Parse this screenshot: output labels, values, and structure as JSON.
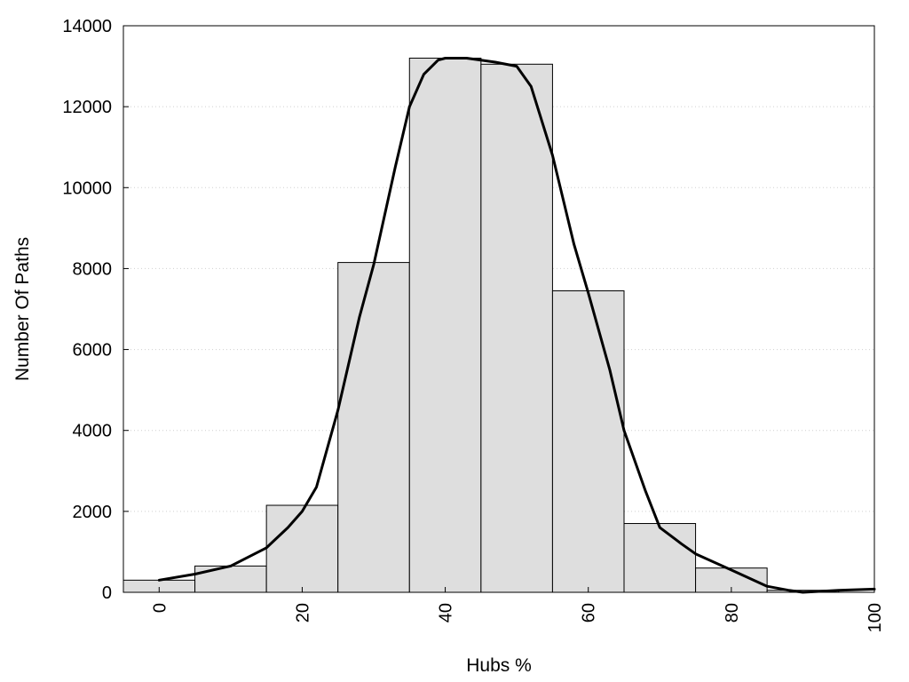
{
  "chart_data": {
    "type": "bar",
    "xlabel": "Hubs %",
    "ylabel": "Number Of Paths",
    "xlim": [
      -5,
      100
    ],
    "ylim": [
      0,
      14000
    ],
    "grid": "horizontal dotted",
    "x_ticks": [
      0,
      20,
      40,
      60,
      80,
      100
    ],
    "y_ticks": [
      0,
      2000,
      4000,
      6000,
      8000,
      10000,
      12000,
      14000
    ],
    "bin_width": 10,
    "bins": [
      {
        "center": 0,
        "value": 300
      },
      {
        "center": 10,
        "value": 650
      },
      {
        "center": 20,
        "value": 2150
      },
      {
        "center": 30,
        "value": 8150
      },
      {
        "center": 40,
        "value": 13200
      },
      {
        "center": 50,
        "value": 13050
      },
      {
        "center": 60,
        "value": 7450
      },
      {
        "center": 70,
        "value": 1700
      },
      {
        "center": 80,
        "value": 600
      },
      {
        "center": 90,
        "value": 50
      }
    ],
    "curve": [
      [
        0,
        300
      ],
      [
        5,
        450
      ],
      [
        10,
        650
      ],
      [
        15,
        1100
      ],
      [
        18,
        1600
      ],
      [
        20,
        2000
      ],
      [
        22,
        2600
      ],
      [
        25,
        4500
      ],
      [
        28,
        6800
      ],
      [
        30,
        8100
      ],
      [
        33,
        10500
      ],
      [
        35,
        12000
      ],
      [
        37,
        12800
      ],
      [
        39,
        13150
      ],
      [
        40,
        13200
      ],
      [
        43,
        13200
      ],
      [
        47,
        13100
      ],
      [
        50,
        13000
      ],
      [
        52,
        12500
      ],
      [
        55,
        10800
      ],
      [
        58,
        8600
      ],
      [
        60,
        7400
      ],
      [
        63,
        5500
      ],
      [
        65,
        4000
      ],
      [
        68,
        2500
      ],
      [
        70,
        1600
      ],
      [
        73,
        1200
      ],
      [
        75,
        950
      ],
      [
        80,
        550
      ],
      [
        85,
        150
      ],
      [
        88,
        50
      ],
      [
        90,
        0
      ],
      [
        95,
        50
      ],
      [
        100,
        80
      ]
    ]
  }
}
